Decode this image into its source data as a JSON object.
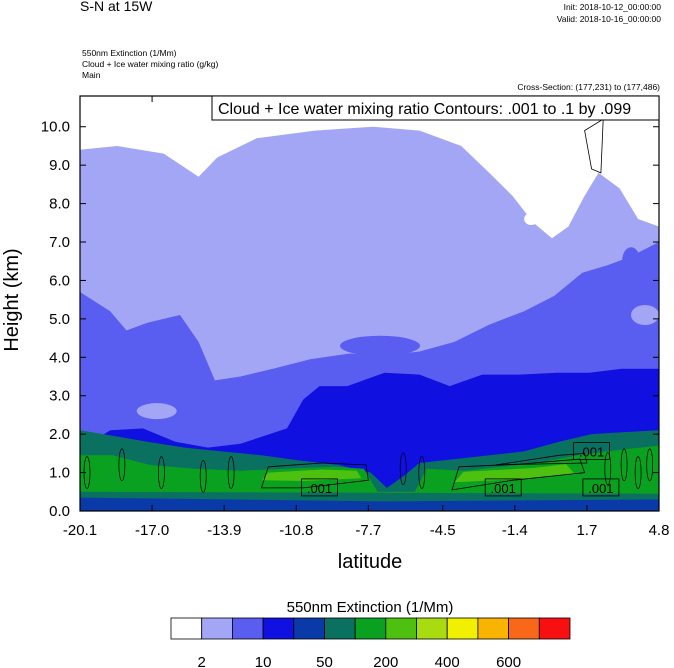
{
  "header": {
    "title": "S-N at 15W",
    "init": "Init: 2018-10-12_00:00:00",
    "valid": "Valid: 2018-10-16_00:00:00",
    "var_line1": "550nm Extinction   (1/Mm)",
    "var_line2": "Cloud + Ice water mixing ratio   (g/kg)",
    "var_line3": "Main",
    "cross_section": "Cross-Section: (177,231) to (177,486)"
  },
  "chart_data": {
    "type": "contour",
    "title": "S-N at 15W",
    "xlabel": "latitude",
    "ylabel": "Height (km)",
    "contour_title": "Cloud + Ice water mixing ratio Contours: .001 to .1 by .099",
    "xlim": [
      -20.1,
      4.8
    ],
    "ylim": [
      0,
      10.8
    ],
    "x_ticks": [
      "-20.1",
      "-17.0",
      "-13.9",
      "-10.8",
      "-7.7",
      "-4.5",
      "-1.4",
      "1.7",
      "4.8"
    ],
    "x_tick_values": [
      -20.1,
      -17.0,
      -13.9,
      -10.8,
      -7.7,
      -4.5,
      -1.4,
      1.7,
      4.8
    ],
    "y_ticks": [
      "0.0",
      "1.0",
      "2.0",
      "3.0",
      "4.0",
      "5.0",
      "6.0",
      "7.0",
      "8.0",
      "9.0",
      "10.0"
    ],
    "y_tick_values": [
      0,
      1,
      2,
      3,
      4,
      5,
      6,
      7,
      8,
      9,
      10
    ],
    "contour_labels": [
      {
        "text": ".001",
        "lat": -9.8,
        "h": 0.6
      },
      {
        "text": ".001",
        "lat": -1.9,
        "h": 0.6
      },
      {
        "text": ".001",
        "lat": 2.3,
        "h": 0.6
      },
      {
        "text": ".001",
        "lat": 1.9,
        "h": 1.55
      }
    ],
    "colorbar": {
      "title": "550nm Extinction  (1/Mm)",
      "tick_labels": [
        "2",
        "10",
        "50",
        "200",
        "400",
        "600"
      ],
      "colors": [
        "#ffffff",
        "#a3a6f5",
        "#5a5ef0",
        "#1010e0",
        "#0a3aa8",
        "#0a7060",
        "#0aa020",
        "#4ec010",
        "#a8dc10",
        "#f0f000",
        "#f8b400",
        "#f86818",
        "#f81010"
      ]
    },
    "bands": {
      "white": "#ffffff",
      "pale": "#a3a6f5",
      "light": "#5a5ef0",
      "blue": "#1010e0",
      "navy": "#0a3aa8",
      "teal": "#0a7060",
      "green": "#0aa020",
      "lime": "#4ec010"
    }
  }
}
